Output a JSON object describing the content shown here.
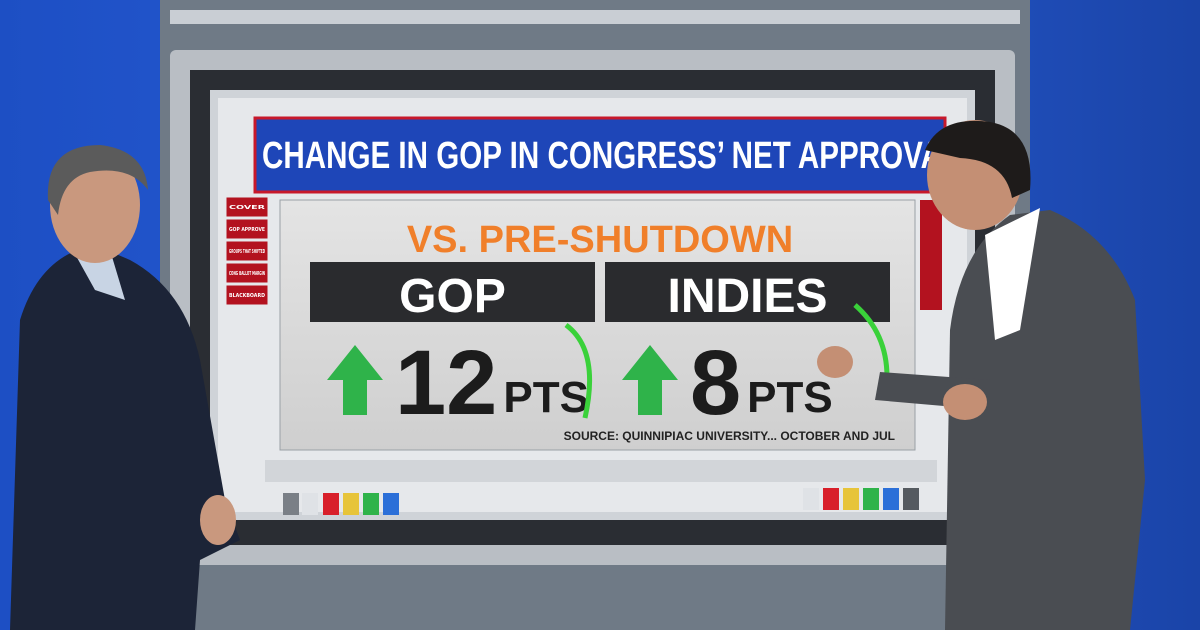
{
  "screen": {
    "title": "CHANGE IN GOP IN CONGRESS’ NET APPROVA",
    "subtitle": "VS. PRE-SHUTDOWN",
    "menu_left": [
      "COVER",
      "GOP APPROVE",
      "GROUPS THAT SHIFTED",
      "CONG BALLOT MARGIN",
      "BLACKBOARD"
    ],
    "panels": [
      {
        "label": "GOP",
        "value": "12",
        "unit": "PTS"
      },
      {
        "label": "INDIES",
        "value": "8",
        "unit": "PTS"
      }
    ],
    "source": "SOURCE: QUINNIPIAC UNIVERSITY... OCTOBER AND JUL"
  }
}
